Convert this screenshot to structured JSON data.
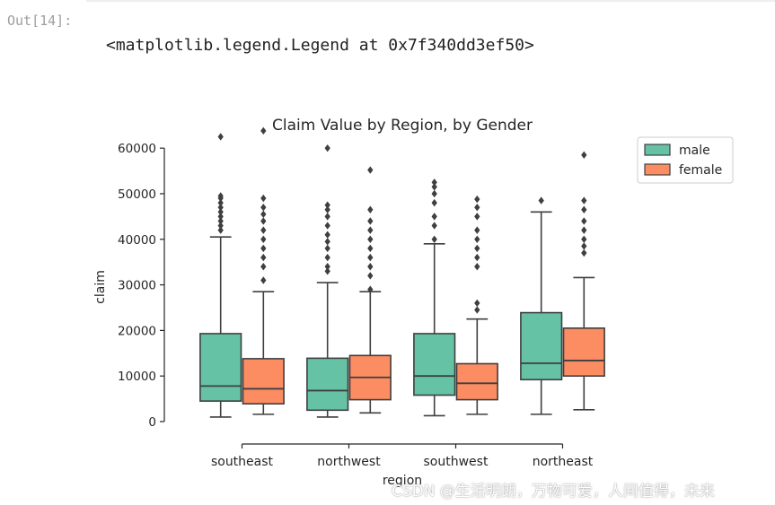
{
  "cell": {
    "prompt": "Out[14]:",
    "output_text": "<matplotlib.legend.Legend at 0x7f340dd3ef50>"
  },
  "watermark": "CSDN @生活明朗，万物可爱，人间值得，未来",
  "chart_data": {
    "type": "box",
    "title": "Claim Value by Region, by Gender",
    "xlabel": "region",
    "ylabel": "claim",
    "ylim": [
      0,
      62000
    ],
    "yticks": [
      0,
      10000,
      20000,
      30000,
      40000,
      50000,
      60000
    ],
    "ytick_labels": [
      "0",
      "10000",
      "20000",
      "30000",
      "40000",
      "50000",
      "60000"
    ],
    "categories": [
      "southeast",
      "northwest",
      "southwest",
      "northeast"
    ],
    "legend_position": "top-right",
    "series": [
      {
        "name": "male",
        "color": "#66c2a5",
        "boxes": [
          {
            "whislo": 1000,
            "q1": 4500,
            "med": 7800,
            "q3": 19300,
            "whishi": 40500,
            "fliers": [
              42000,
              43000,
              44000,
              45000,
              46000,
              47000,
              48000,
              49000,
              49500,
              62500
            ]
          },
          {
            "whislo": 1000,
            "q1": 2500,
            "med": 6800,
            "q3": 13900,
            "whishi": 30500,
            "fliers": [
              33000,
              34000,
              36000,
              38000,
              39500,
              41000,
              43000,
              45000,
              46500,
              47500,
              60000
            ]
          },
          {
            "whislo": 1300,
            "q1": 5800,
            "med": 10000,
            "q3": 19300,
            "whishi": 39000,
            "fliers": [
              40000,
              43000,
              45000,
              48000,
              50000,
              51500,
              52500
            ]
          },
          {
            "whislo": 1600,
            "q1": 9200,
            "med": 12800,
            "q3": 23900,
            "whishi": 46000,
            "fliers": [
              48500
            ]
          }
        ]
      },
      {
        "name": "female",
        "color": "#fc8d62",
        "boxes": [
          {
            "whislo": 1600,
            "q1": 3900,
            "med": 7200,
            "q3": 13800,
            "whishi": 28500,
            "fliers": [
              31000,
              34000,
              36000,
              38000,
              40000,
              42000,
              44000,
              45500,
              47000,
              49000,
              63800
            ]
          },
          {
            "whislo": 1900,
            "q1": 4800,
            "med": 9700,
            "q3": 14500,
            "whishi": 28500,
            "fliers": [
              29000,
              32000,
              34000,
              36000,
              38000,
              40000,
              42000,
              44000,
              46500,
              55200
            ]
          },
          {
            "whislo": 1600,
            "q1": 4800,
            "med": 8400,
            "q3": 12700,
            "whishi": 22500,
            "fliers": [
              24500,
              26000,
              34000,
              36000,
              38000,
              40000,
              42000,
              45000,
              47000,
              48800
            ]
          },
          {
            "whislo": 2600,
            "q1": 10000,
            "med": 13400,
            "q3": 20500,
            "whishi": 31600,
            "fliers": [
              37000,
              38500,
              40000,
              42000,
              44000,
              46500,
              48500,
              58500
            ]
          }
        ]
      }
    ]
  }
}
